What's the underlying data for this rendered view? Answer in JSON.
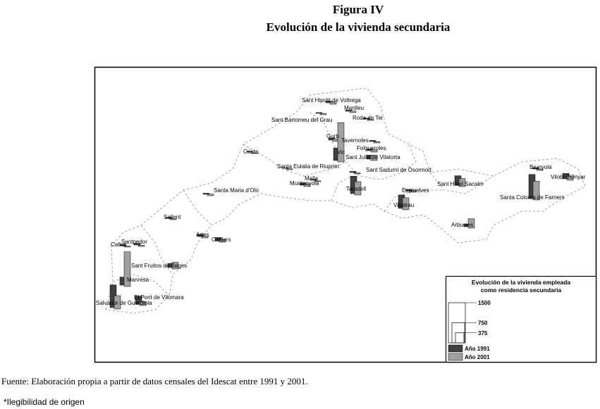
{
  "map": {
    "title": "Figura IV",
    "subtitle": "Evolución de la vivienda secundaria",
    "legend": {
      "title_lines": [
        "Evolución de la vivienda empleada",
        "como residencia secundaria"
      ],
      "ticks": [
        1500,
        750,
        375
      ],
      "series": [
        {
          "name": "Año 1991",
          "color": "#404040"
        },
        {
          "name": "Año 2001",
          "color": "#a0a0a0"
        }
      ]
    },
    "places": [
      {
        "name": "Sant Hipolit de Voltrega",
        "values": [
          60,
          80
        ]
      },
      {
        "name": "Manlleu",
        "values": [
          40,
          60
        ]
      },
      {
        "name": "Sant Bartomeu del Grau",
        "values": [
          30,
          50
        ]
      },
      {
        "name": "Roda de Ter",
        "values": [
          30,
          30
        ]
      },
      {
        "name": "Gurb",
        "values": [
          80,
          100
        ]
      },
      {
        "name": "Vic",
        "values": [
          470,
          1470
        ]
      },
      {
        "name": "Tavernoles",
        "values": [
          40,
          50
        ]
      },
      {
        "name": "Folgueroles",
        "values": [
          60,
          80
        ]
      },
      {
        "name": "Sant Julia de Vilatorta",
        "values": [
          150,
          200
        ]
      },
      {
        "name": "Orista",
        "values": [
          20,
          20
        ]
      },
      {
        "name": "Santa Eulalia de Riuprim",
        "values": [
          20,
          30
        ]
      },
      {
        "name": "Sant Sadurni de Osormort",
        "values": [
          40,
          40
        ]
      },
      {
        "name": "Malla",
        "values": [
          30,
          30
        ]
      },
      {
        "name": "Muntanyola",
        "values": [
          80,
          100
        ]
      },
      {
        "name": "Taradell",
        "values": [
          650,
          500
        ]
      },
      {
        "name": "Sant Hilari Sacalm",
        "values": [
          350,
          300
        ]
      },
      {
        "name": "Espinelves",
        "values": [
          50,
          60
        ]
      },
      {
        "name": "Viladrau",
        "values": [
          500,
          450
        ]
      },
      {
        "name": "Brunyola",
        "values": [
          50,
          50
        ]
      },
      {
        "name": "Vilobi d'Onyar",
        "values": [
          200,
          150
        ]
      },
      {
        "name": "Santa Coloma de Farners",
        "values": [
          900,
          700
        ]
      },
      {
        "name": "Arbucies",
        "values": [
          100,
          350
        ]
      },
      {
        "name": "Santa Maria d'Olo",
        "values": [
          40,
          60
        ]
      },
      {
        "name": "Sallent",
        "values": [
          30,
          30
        ]
      },
      {
        "name": "Artes",
        "values": [
          80,
          60
        ]
      },
      {
        "name": "Calders",
        "values": [
          120,
          100
        ]
      },
      {
        "name": "Callus",
        "values": [
          40,
          40
        ]
      },
      {
        "name": "Santpedor",
        "values": [
          60,
          40
        ]
      },
      {
        "name": "Sant Fruitos de Bages",
        "values": [
          150,
          250
        ]
      },
      {
        "name": "Manresa",
        "values": [
          300,
          1300
        ]
      },
      {
        "name": "El Pont de Vilomara",
        "values": [
          300,
          150
        ]
      },
      {
        "name": "Salvador de Guardiola",
        "values": [
          850,
          500
        ]
      }
    ],
    "source": "Fuente: Elaboración propia a partir de datos censales del Idescat entre 1991 y 2001.",
    "note": "*Ilegibilidad de origen"
  }
}
